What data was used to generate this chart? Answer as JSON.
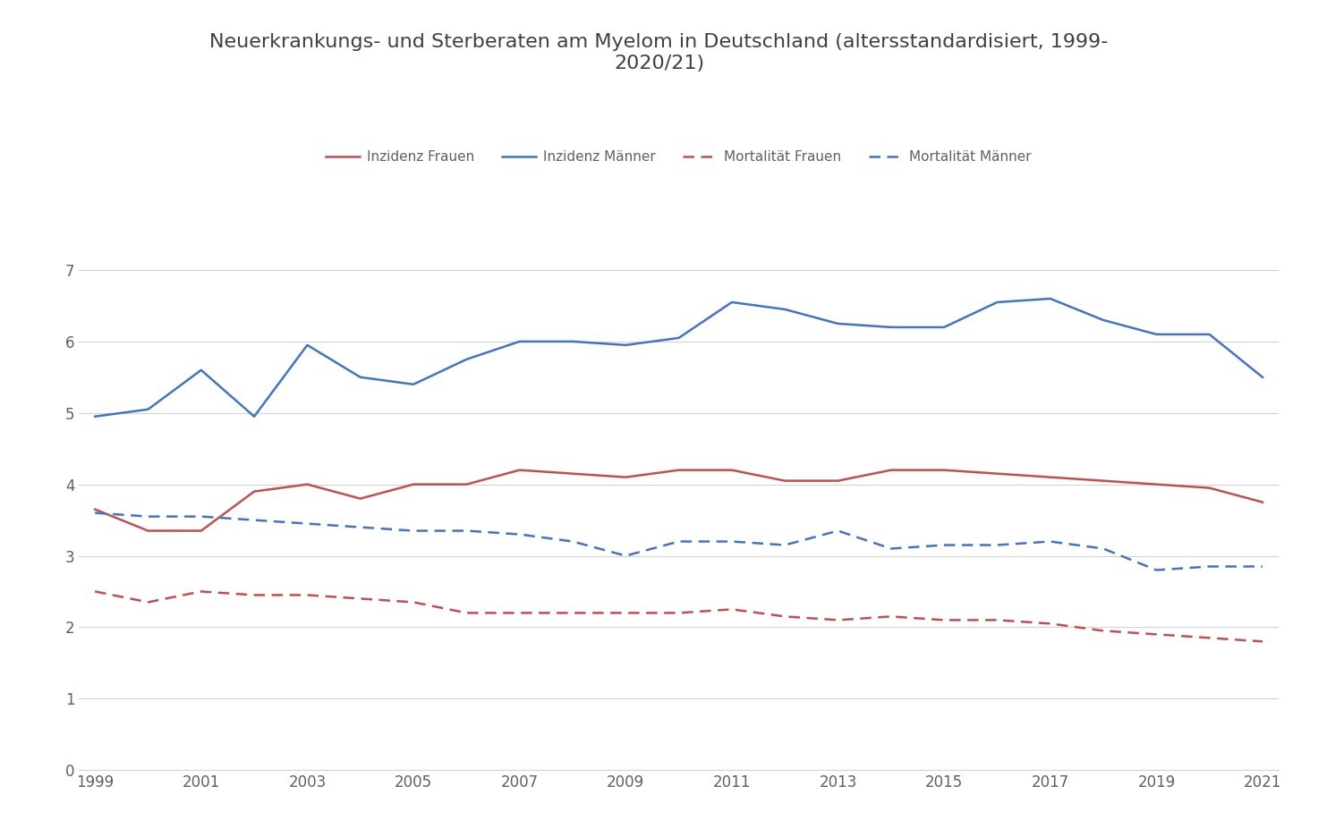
{
  "title": "Neuerkrankungs- und Sterberaten am Myelom in Deutschland (altersstandardisiert, 1999-\n2020/21)",
  "years": [
    1999,
    2000,
    2001,
    2002,
    2003,
    2004,
    2005,
    2006,
    2007,
    2008,
    2009,
    2010,
    2011,
    2012,
    2013,
    2014,
    2015,
    2016,
    2017,
    2018,
    2019,
    2020,
    2021
  ],
  "inzidenz_frauen": [
    3.65,
    3.35,
    3.35,
    3.9,
    4.0,
    3.8,
    4.0,
    4.0,
    4.2,
    4.15,
    4.1,
    4.2,
    4.2,
    4.05,
    4.05,
    4.2,
    4.2,
    4.15,
    4.1,
    4.05,
    4.0,
    3.95,
    3.75
  ],
  "inzidenz_maenner": [
    4.95,
    5.05,
    5.6,
    4.95,
    5.95,
    5.5,
    5.4,
    5.75,
    6.0,
    6.0,
    5.95,
    6.05,
    6.55,
    6.45,
    6.25,
    6.2,
    6.2,
    6.55,
    6.6,
    6.3,
    6.1,
    6.1,
    5.5
  ],
  "mortalitaet_frauen": [
    2.5,
    2.35,
    2.5,
    2.45,
    2.45,
    2.4,
    2.35,
    2.2,
    2.2,
    2.2,
    2.2,
    2.2,
    2.25,
    2.15,
    2.1,
    2.15,
    2.1,
    2.1,
    2.05,
    1.95,
    1.9,
    1.85,
    1.8
  ],
  "mortalitaet_maenner": [
    3.6,
    3.55,
    3.55,
    3.5,
    3.45,
    3.4,
    3.35,
    3.35,
    3.3,
    3.2,
    3.0,
    3.2,
    3.2,
    3.15,
    3.35,
    3.1,
    3.15,
    3.15,
    3.2,
    3.1,
    2.8,
    2.85,
    2.85
  ],
  "color_frauen": "#c0504d",
  "color_maenner": "#4472c4",
  "ylim": [
    0,
    7.5
  ],
  "yticks": [
    0,
    1,
    2,
    3,
    4,
    5,
    6,
    7
  ],
  "legend_labels": [
    "Inzidenz Frauen",
    "Inzidenz Männer",
    "Mortalität Frauen",
    "Mortalität Männer"
  ],
  "background_color": "#ffffff",
  "grid_color": "#d3d3d3",
  "title_fontsize": 16,
  "tick_fontsize": 12,
  "legend_fontsize": 11,
  "line_width": 1.8,
  "title_color": "#404040",
  "tick_color": "#606060"
}
